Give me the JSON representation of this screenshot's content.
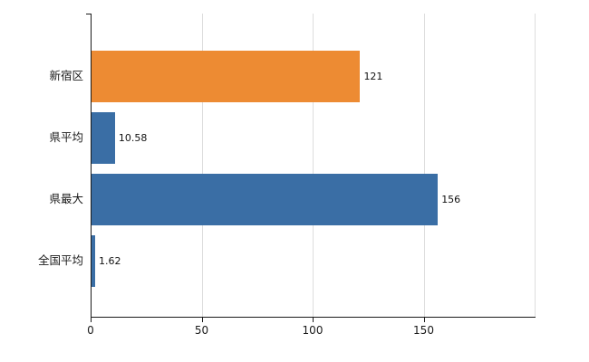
{
  "chart_data": {
    "type": "bar",
    "orientation": "horizontal",
    "title": "",
    "categories": [
      "新宿区",
      "県平均",
      "県最大",
      "全国平均"
    ],
    "values": [
      121,
      10.58,
      156,
      1.62
    ],
    "value_labels": [
      "121",
      "10.58",
      "156",
      "1.62"
    ],
    "bar_colors": [
      "#ED8B33",
      "#3A6EA5",
      "#3A6EA5",
      "#3A6EA5"
    ],
    "xlim": [
      0,
      200
    ],
    "x_ticks": [
      0,
      50,
      100,
      150
    ],
    "gridlines": [
      50,
      100,
      150,
      200
    ],
    "grid_color": "#dddddd",
    "axis_color": "#1a1a1a",
    "legend": "none",
    "background": "#ffffff"
  }
}
